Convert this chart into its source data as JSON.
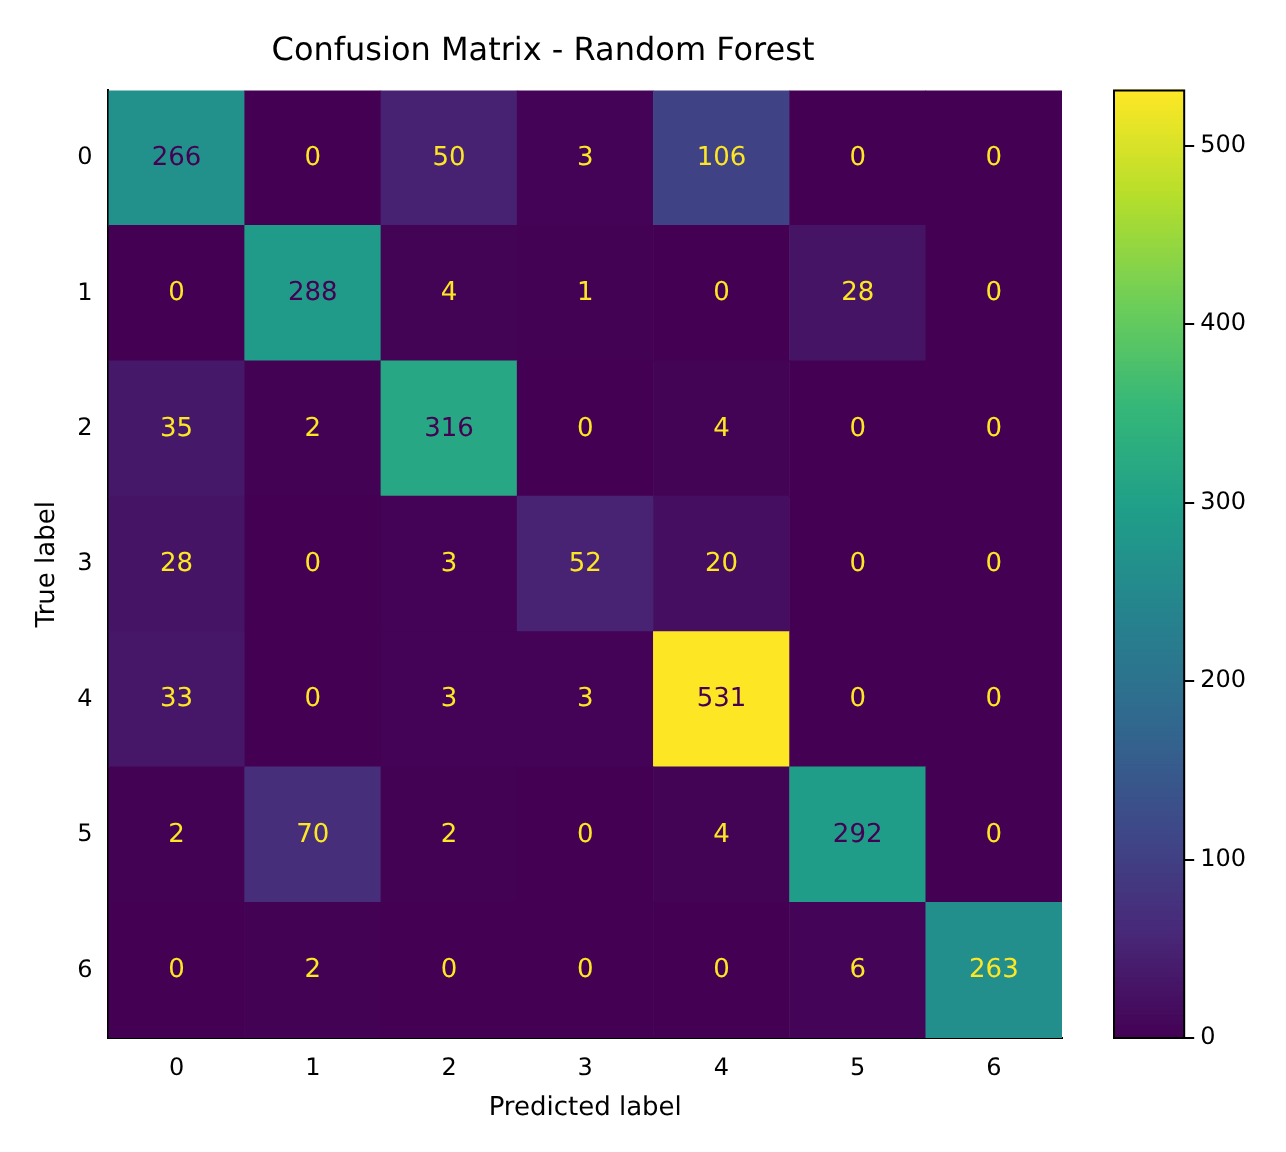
{
  "chart_data": {
    "type": "heatmap",
    "title": "Confusion Matrix - Random Forest",
    "xlabel": "Predicted label",
    "ylabel": "True label",
    "categories": [
      "0",
      "1",
      "2",
      "3",
      "4",
      "5",
      "6"
    ],
    "y_categories": [
      "0",
      "1",
      "2",
      "3",
      "4",
      "5",
      "6"
    ],
    "cells": [
      [
        266,
        0,
        50,
        3,
        106,
        0,
        0
      ],
      [
        0,
        288,
        4,
        1,
        0,
        28,
        0
      ],
      [
        35,
        2,
        316,
        0,
        4,
        0,
        0
      ],
      [
        28,
        0,
        3,
        52,
        20,
        0,
        0
      ],
      [
        33,
        0,
        3,
        3,
        531,
        0,
        0
      ],
      [
        2,
        70,
        2,
        0,
        4,
        292,
        0
      ],
      [
        0,
        2,
        0,
        0,
        0,
        6,
        263
      ]
    ],
    "clim": [
      0,
      531
    ],
    "cticks": [
      0,
      100,
      200,
      300,
      400,
      500
    ],
    "data_labels": true,
    "grid": false
  }
}
